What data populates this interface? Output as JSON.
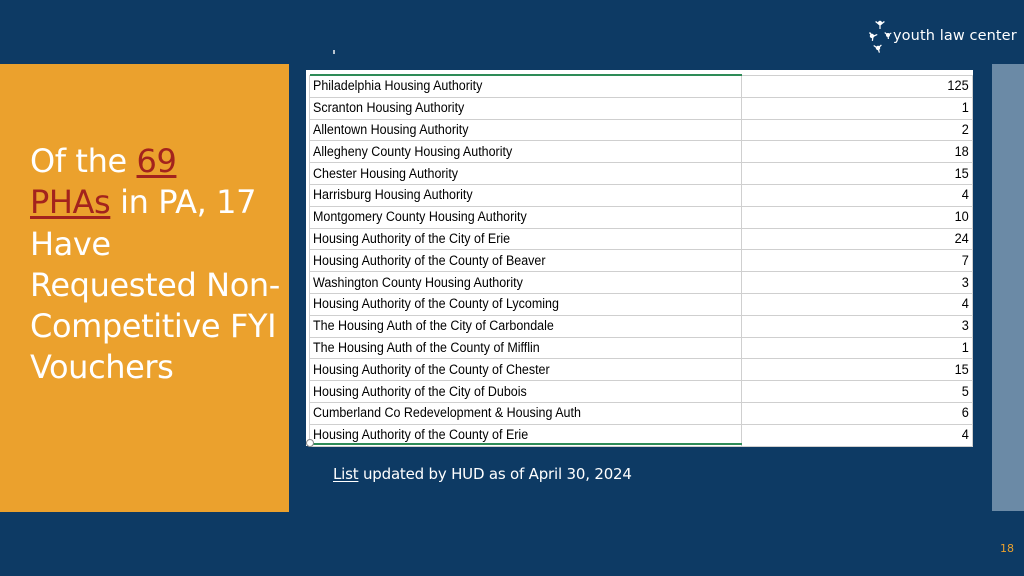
{
  "logo": {
    "text": "youth law center",
    "icon": "people-network-icon"
  },
  "headline": {
    "part1": "Of the ",
    "link1": "69",
    "link2": "PHAs",
    "part2": " in PA, 17 Have Requested Non-Competitive FYI Vouchers"
  },
  "table": {
    "rows": [
      {
        "name": "Philadelphia Housing Authority",
        "count": "125"
      },
      {
        "name": "Scranton Housing Authority",
        "count": "1"
      },
      {
        "name": "Allentown Housing Authority",
        "count": "2"
      },
      {
        "name": "Allegheny County Housing Authority",
        "count": "18"
      },
      {
        "name": "Chester Housing Authority",
        "count": "15"
      },
      {
        "name": "Harrisburg Housing Authority",
        "count": "4"
      },
      {
        "name": "Montgomery County Housing Authority",
        "count": "10"
      },
      {
        "name": "Housing Authority of the City of Erie",
        "count": "24"
      },
      {
        "name": "Housing Authority of the County of Beaver",
        "count": "7"
      },
      {
        "name": "Washington County Housing Authority",
        "count": "3"
      },
      {
        "name": "Housing Authority of the County of Lycoming",
        "count": "4"
      },
      {
        "name": "The Housing Auth of the City of Carbondale",
        "count": "3"
      },
      {
        "name": "The Housing Auth of the County of Mifflin",
        "count": "1"
      },
      {
        "name": "Housing Authority of the County of Chester",
        "count": "15"
      },
      {
        "name": "Housing Authority of the City of Dubois",
        "count": "5"
      },
      {
        "name": "Cumberland Co Redevelopment & Housing Auth",
        "count": "6"
      },
      {
        "name": "Housing Authority of the County of Erie",
        "count": "4"
      }
    ]
  },
  "caption": {
    "link": "List",
    "text": " updated by HUD as of April 30, 2024"
  },
  "page_number": "18",
  "colors": {
    "background": "#0d3a64",
    "panel": "#eba12d",
    "link_red": "#a3231d",
    "strip": "#6b8aa6"
  }
}
